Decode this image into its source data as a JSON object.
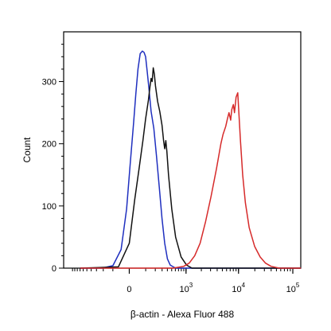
{
  "chart_data": {
    "type": "line",
    "xlabel": "β-actin - Alexa Fluor 488",
    "ylabel": "Count",
    "x_axis": {
      "scale": "biexponential",
      "ticks": [
        {
          "value": 0,
          "label": "0",
          "exp": ""
        },
        {
          "value": 1000,
          "label": "10",
          "exp": "3"
        },
        {
          "value": 10000,
          "label": "10",
          "exp": "4"
        },
        {
          "value": 100000,
          "label": "10",
          "exp": "5"
        }
      ]
    },
    "y_axis": {
      "range": [
        0,
        380
      ],
      "ticks": [
        {
          "value": 0,
          "label": "0"
        },
        {
          "value": 100,
          "label": "100"
        },
        {
          "value": 200,
          "label": "200"
        },
        {
          "value": 300,
          "label": "300"
        }
      ]
    },
    "grid": false,
    "legend": "none",
    "series": [
      {
        "color": "#1f2fbf",
        "points": [
          [
            -0.9,
            0
          ],
          [
            -0.5,
            0
          ],
          [
            -0.3,
            4
          ],
          [
            -0.15,
            30
          ],
          [
            -0.05,
            95
          ],
          [
            0.02,
            170
          ],
          [
            0.08,
            235
          ],
          [
            0.12,
            280
          ],
          [
            0.16,
            320
          ],
          [
            0.2,
            345
          ],
          [
            0.24,
            349
          ],
          [
            0.27,
            347
          ],
          [
            0.3,
            340
          ],
          [
            0.33,
            315
          ],
          [
            0.36,
            290
          ],
          [
            0.4,
            252
          ],
          [
            0.45,
            225
          ],
          [
            0.5,
            180
          ],
          [
            0.55,
            130
          ],
          [
            0.6,
            80
          ],
          [
            0.65,
            40
          ],
          [
            0.7,
            15
          ],
          [
            0.75,
            5
          ],
          [
            0.85,
            0
          ],
          [
            3.15,
            0
          ]
        ]
      },
      {
        "color": "#111111",
        "points": [
          [
            -0.9,
            0
          ],
          [
            -0.2,
            2
          ],
          [
            0.0,
            40
          ],
          [
            0.1,
            110
          ],
          [
            0.18,
            160
          ],
          [
            0.25,
            205
          ],
          [
            0.3,
            240
          ],
          [
            0.35,
            270
          ],
          [
            0.38,
            292
          ],
          [
            0.4,
            305
          ],
          [
            0.42,
            300
          ],
          [
            0.44,
            322
          ],
          [
            0.46,
            312
          ],
          [
            0.48,
            293
          ],
          [
            0.52,
            268
          ],
          [
            0.56,
            252
          ],
          [
            0.6,
            230
          ],
          [
            0.63,
            205
          ],
          [
            0.65,
            192
          ],
          [
            0.67,
            205
          ],
          [
            0.69,
            188
          ],
          [
            0.72,
            150
          ],
          [
            0.78,
            95
          ],
          [
            0.85,
            50
          ],
          [
            0.95,
            18
          ],
          [
            1.05,
            5
          ],
          [
            1.15,
            0
          ],
          [
            3.15,
            0
          ]
        ]
      },
      {
        "color": "#d62a2a",
        "points": [
          [
            -0.9,
            0
          ],
          [
            0.8,
            0
          ],
          [
            1.0,
            3
          ],
          [
            1.1,
            8
          ],
          [
            1.2,
            20
          ],
          [
            1.3,
            40
          ],
          [
            1.4,
            75
          ],
          [
            1.5,
            115
          ],
          [
            1.6,
            160
          ],
          [
            1.68,
            200
          ],
          [
            1.72,
            215
          ],
          [
            1.77,
            228
          ],
          [
            1.8,
            240
          ],
          [
            1.83,
            250
          ],
          [
            1.86,
            238
          ],
          [
            1.88,
            255
          ],
          [
            1.91,
            263
          ],
          [
            1.93,
            250
          ],
          [
            1.96,
            275
          ],
          [
            1.99,
            282
          ],
          [
            2.01,
            250
          ],
          [
            2.04,
            205
          ],
          [
            2.08,
            150
          ],
          [
            2.13,
            105
          ],
          [
            2.2,
            65
          ],
          [
            2.3,
            35
          ],
          [
            2.4,
            18
          ],
          [
            2.5,
            8
          ],
          [
            2.6,
            3
          ],
          [
            2.75,
            0
          ],
          [
            3.15,
            0
          ]
        ]
      }
    ]
  }
}
